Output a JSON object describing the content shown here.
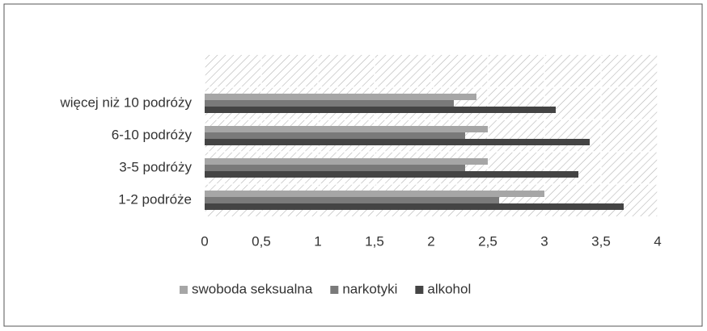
{
  "chart_data": {
    "type": "bar",
    "orientation": "horizontal",
    "categories": [
      "1-2 podróże",
      "3-5 podróży",
      "6-10 podróży",
      "więcej niż 10 podróży"
    ],
    "series": [
      {
        "name": "swoboda seksualna",
        "color": "#a6a6a6",
        "values": [
          3.0,
          2.5,
          2.5,
          2.4
        ]
      },
      {
        "name": "narkotyki",
        "color": "#7a7a7a",
        "values": [
          2.6,
          2.3,
          2.3,
          2.2
        ]
      },
      {
        "name": "alkohol",
        "color": "#444444",
        "values": [
          3.7,
          3.3,
          3.4,
          3.1
        ]
      }
    ],
    "xlim": [
      0,
      4
    ],
    "xticks": [
      0,
      {
        "value": 0.5,
        "label": "0,5"
      },
      1,
      {
        "value": 1.5,
        "label": "1,5"
      },
      2,
      {
        "value": 2.5,
        "label": "2,5"
      },
      3,
      {
        "value": 3.5,
        "label": "3,5"
      },
      4
    ],
    "grid": true,
    "legend": "bottom"
  }
}
